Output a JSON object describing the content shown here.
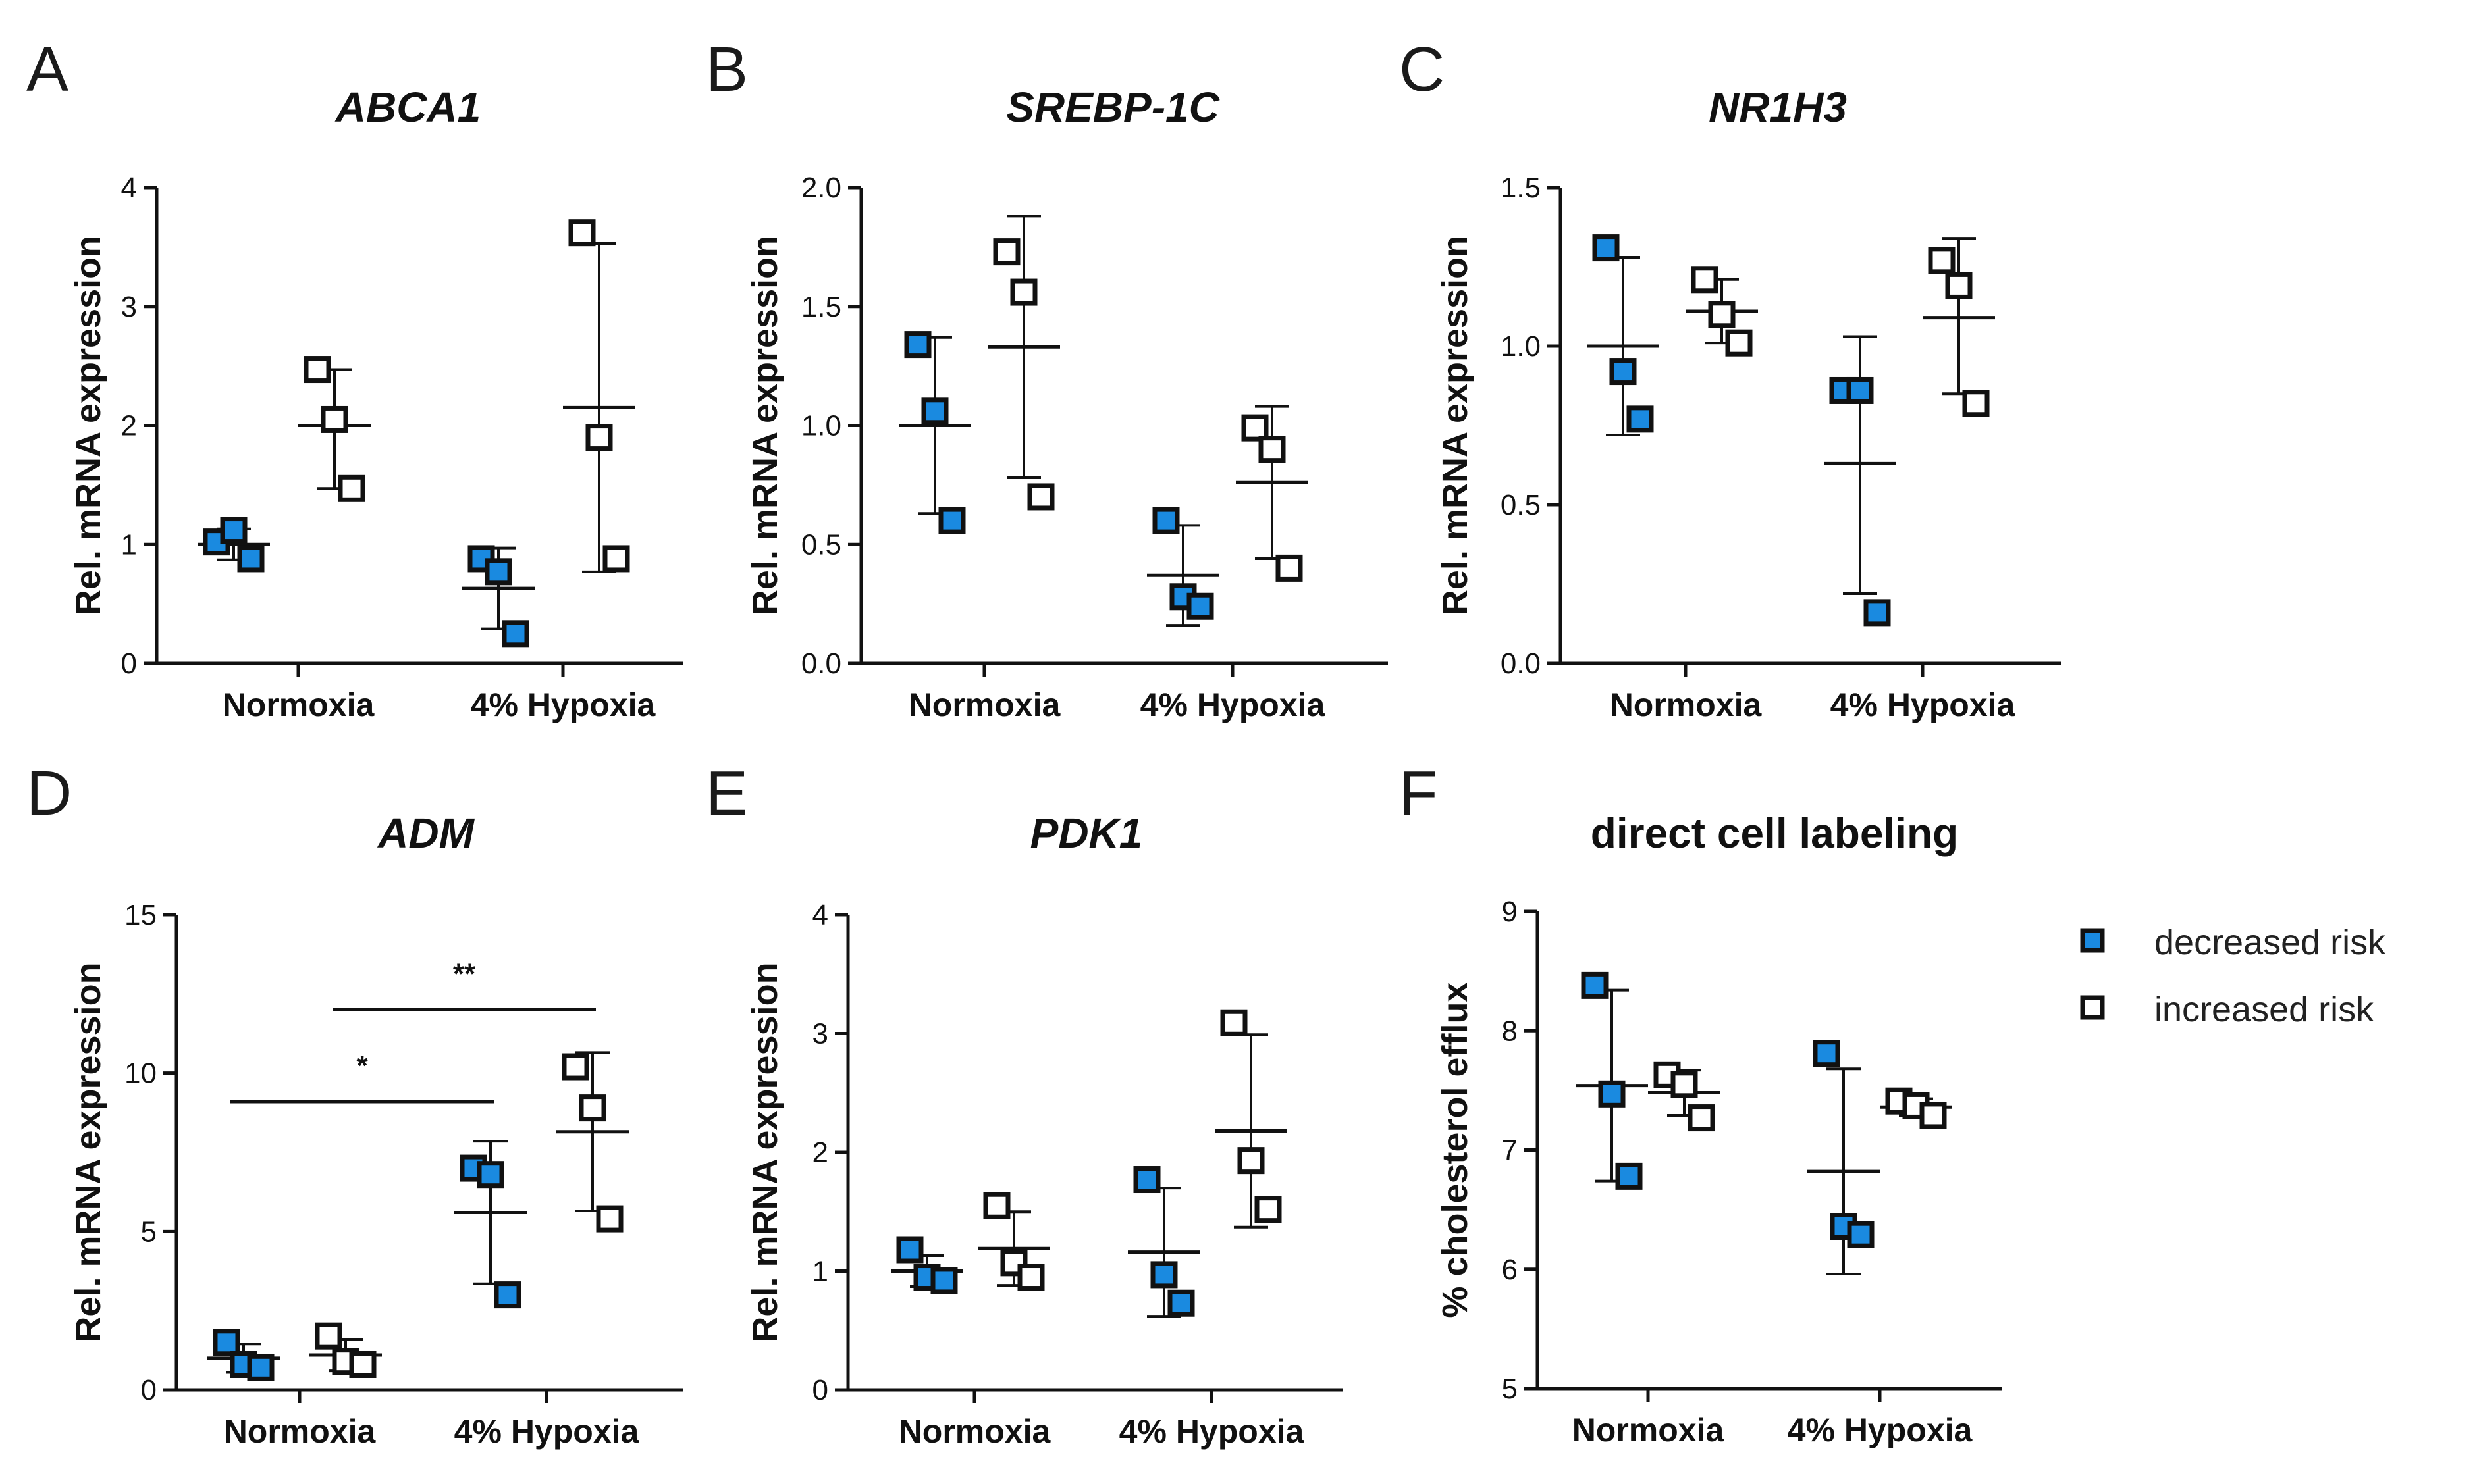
{
  "legend": [
    {
      "label": "decreased risk",
      "fill": "#1a8ae0"
    },
    {
      "label": "increased risk",
      "fill": "#ffffff"
    }
  ],
  "colors": {
    "decreased": "#1a8ae0",
    "increased": "#ffffff",
    "stroke": "#111111"
  },
  "chart_data": [
    {
      "letter": "A",
      "title": "ABCA1",
      "title_italic": true,
      "type": "scatter",
      "ylabel": "Rel. mRNA expression",
      "ylim": [
        0,
        4
      ],
      "yticks": [
        0,
        1,
        2,
        3,
        4
      ],
      "tick_labels": [
        "0",
        "1",
        "2",
        "3",
        "4"
      ],
      "categories": [
        "Normoxia",
        "4% Hypoxia"
      ],
      "groups": [
        {
          "category": "Normoxia",
          "series": "decreased risk",
          "points": [
            1.02,
            1.12,
            0.88
          ],
          "mean": 1.0,
          "err": [
            0.87,
            1.13
          ]
        },
        {
          "category": "Normoxia",
          "series": "increased risk",
          "points": [
            2.47,
            2.05,
            1.47
          ],
          "mean": 2.0,
          "err": [
            1.47,
            2.47
          ]
        },
        {
          "category": "4% Hypoxia",
          "series": "decreased risk",
          "points": [
            0.88,
            0.77,
            0.25
          ],
          "mean": 0.63,
          "err": [
            0.29,
            0.97
          ]
        },
        {
          "category": "4% Hypoxia",
          "series": "increased risk",
          "points": [
            3.62,
            1.9,
            0.88
          ],
          "mean": 2.15,
          "err": [
            0.77,
            3.53
          ]
        }
      ],
      "significance": []
    },
    {
      "letter": "B",
      "title": "SREBP-1C",
      "title_italic": true,
      "type": "scatter",
      "ylabel": "Rel. mRNA expression",
      "ylim": [
        0,
        2
      ],
      "yticks": [
        0,
        0.5,
        1,
        1.5,
        2
      ],
      "tick_labels": [
        "0.0",
        "0.5",
        "1.0",
        "1.5",
        "2.0"
      ],
      "categories": [
        "Normoxia",
        "4% Hypoxia"
      ],
      "groups": [
        {
          "category": "Normoxia",
          "series": "decreased risk",
          "points": [
            1.34,
            1.06,
            0.6
          ],
          "mean": 1.0,
          "err": [
            0.63,
            1.37
          ]
        },
        {
          "category": "Normoxia",
          "series": "increased risk",
          "points": [
            1.73,
            1.56,
            0.7
          ],
          "mean": 1.33,
          "err": [
            0.78,
            1.88
          ]
        },
        {
          "category": "4% Hypoxia",
          "series": "decreased risk",
          "points": [
            0.6,
            0.28,
            0.24
          ],
          "mean": 0.37,
          "err": [
            0.16,
            0.58
          ]
        },
        {
          "category": "4% Hypoxia",
          "series": "increased risk",
          "points": [
            0.99,
            0.9,
            0.4
          ],
          "mean": 0.76,
          "err": [
            0.44,
            1.08
          ]
        }
      ],
      "significance": []
    },
    {
      "letter": "C",
      "title": "NR1H3",
      "title_italic": true,
      "type": "scatter",
      "ylabel": "Rel. mRNA expression",
      "ylim": [
        0,
        1.5
      ],
      "yticks": [
        0,
        0.5,
        1,
        1.5
      ],
      "tick_labels": [
        "0.0",
        "0.5",
        "1.0",
        "1.5"
      ],
      "categories": [
        "Normoxia",
        "4% Hypoxia"
      ],
      "groups": [
        {
          "category": "Normoxia",
          "series": "decreased risk",
          "points": [
            1.31,
            0.92,
            0.77
          ],
          "mean": 1.0,
          "err": [
            0.72,
            1.28
          ]
        },
        {
          "category": "Normoxia",
          "series": "increased risk",
          "points": [
            1.21,
            1.1,
            1.01
          ],
          "mean": 1.11,
          "err": [
            1.01,
            1.21
          ]
        },
        {
          "category": "4% Hypoxia",
          "series": "decreased risk",
          "points": [
            0.86,
            0.86,
            0.16
          ],
          "mean": 0.63,
          "err": [
            0.22,
            1.03
          ]
        },
        {
          "category": "4% Hypoxia",
          "series": "increased risk",
          "points": [
            1.27,
            1.19,
            0.82
          ],
          "mean": 1.09,
          "err": [
            0.85,
            1.34
          ]
        }
      ],
      "significance": []
    },
    {
      "letter": "D",
      "title": "ADM",
      "title_italic": true,
      "type": "scatter",
      "ylabel": "Rel. mRNA expression",
      "ylim": [
        0,
        15
      ],
      "yticks": [
        0,
        5,
        10,
        15
      ],
      "tick_labels": [
        "0",
        "5",
        "10",
        "15"
      ],
      "categories": [
        "Normoxia",
        "4% Hypoxia"
      ],
      "groups": [
        {
          "category": "Normoxia",
          "series": "decreased risk",
          "points": [
            1.5,
            0.8,
            0.7
          ],
          "mean": 1.0,
          "err": [
            0.55,
            1.45
          ]
        },
        {
          "category": "Normoxia",
          "series": "increased risk",
          "points": [
            1.7,
            0.9,
            0.8
          ],
          "mean": 1.1,
          "err": [
            0.6,
            1.6
          ]
        },
        {
          "category": "4% Hypoxia",
          "series": "decreased risk",
          "points": [
            7.0,
            6.8,
            3.0
          ],
          "mean": 5.6,
          "err": [
            3.35,
            7.85
          ]
        },
        {
          "category": "4% Hypoxia",
          "series": "increased risk",
          "points": [
            10.2,
            8.9,
            5.4
          ],
          "mean": 8.15,
          "err": [
            5.65,
            10.65
          ]
        }
      ],
      "significance": [
        {
          "label": "*",
          "from": [
            0,
            0
          ],
          "to": [
            1,
            0
          ],
          "y": 9.1
        },
        {
          "label": "**",
          "from": [
            0,
            1
          ],
          "to": [
            1,
            1
          ],
          "y": 12.0
        }
      ]
    },
    {
      "letter": "E",
      "title": "PDK1",
      "title_italic": true,
      "type": "scatter",
      "ylabel": "Rel. mRNA expression",
      "ylim": [
        0,
        4
      ],
      "yticks": [
        0,
        1,
        2,
        3,
        4
      ],
      "tick_labels": [
        "0",
        "1",
        "2",
        "3",
        "4"
      ],
      "categories": [
        "Normoxia",
        "4% Hypoxia"
      ],
      "groups": [
        {
          "category": "Normoxia",
          "series": "decreased risk",
          "points": [
            1.18,
            0.95,
            0.92
          ],
          "mean": 1.0,
          "err": [
            0.87,
            1.13
          ]
        },
        {
          "category": "Normoxia",
          "series": "increased risk",
          "points": [
            1.55,
            1.07,
            0.95
          ],
          "mean": 1.19,
          "err": [
            0.88,
            1.5
          ]
        },
        {
          "category": "4% Hypoxia",
          "series": "decreased risk",
          "points": [
            1.77,
            0.97,
            0.73
          ],
          "mean": 1.16,
          "err": [
            0.62,
            1.7
          ]
        },
        {
          "category": "4% Hypoxia",
          "series": "increased risk",
          "points": [
            3.09,
            1.93,
            1.52
          ],
          "mean": 2.18,
          "err": [
            1.37,
            2.99
          ]
        }
      ],
      "significance": []
    },
    {
      "letter": "F",
      "title": "direct cell labeling",
      "title_italic": false,
      "type": "scatter",
      "ylabel": "% cholesterol efflux",
      "ylim": [
        5,
        9
      ],
      "yticks": [
        5,
        6,
        7,
        8,
        9
      ],
      "tick_labels": [
        "5",
        "6",
        "7",
        "8",
        "9"
      ],
      "categories": [
        "Normoxia",
        "4% Hypoxia"
      ],
      "groups": [
        {
          "category": "Normoxia",
          "series": "decreased risk",
          "points": [
            8.38,
            7.47,
            6.78
          ],
          "mean": 7.54,
          "err": [
            6.74,
            8.34
          ]
        },
        {
          "category": "Normoxia",
          "series": "increased risk",
          "points": [
            7.63,
            7.55,
            7.27
          ],
          "mean": 7.48,
          "err": [
            7.29,
            7.67
          ]
        },
        {
          "category": "4% Hypoxia",
          "series": "decreased risk",
          "points": [
            7.81,
            6.36,
            6.29
          ],
          "mean": 6.82,
          "err": [
            5.96,
            7.68
          ]
        },
        {
          "category": "4% Hypoxia",
          "series": "increased risk",
          "points": [
            7.41,
            7.37,
            7.29
          ],
          "mean": 7.36,
          "err": [
            7.29,
            7.43
          ]
        }
      ],
      "significance": []
    }
  ]
}
